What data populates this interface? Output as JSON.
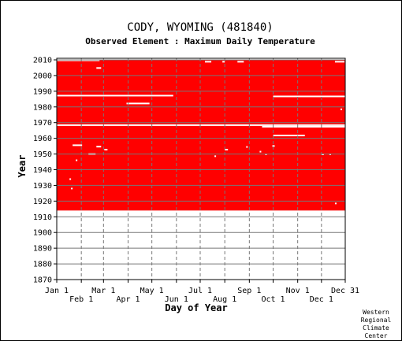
{
  "chart_data": {
    "type": "heatmap",
    "title": "CODY, WYOMING   (481840)",
    "subtitle": "Observed Element : Maximum Daily Temperature",
    "xlabel": "Day of Year",
    "ylabel": "Year",
    "ylim": [
      1870,
      2011
    ],
    "xlim": [
      1,
      365
    ],
    "grid": true,
    "y_ticks": [
      2010,
      2000,
      1990,
      1980,
      1970,
      1960,
      1950,
      1940,
      1930,
      1920,
      1910,
      1900,
      1890,
      1880,
      1870
    ],
    "x_ticks_top_row": [
      {
        "label": "Jan 1",
        "day": 1
      },
      {
        "label": "Mar 1",
        "day": 60
      },
      {
        "label": "May 1",
        "day": 121
      },
      {
        "label": "Jul 1",
        "day": 182
      },
      {
        "label": "Sep 1",
        "day": 244
      },
      {
        "label": "Nov 1",
        "day": 305
      },
      {
        "label": "Dec 31",
        "day": 365
      }
    ],
    "x_ticks_bottom_row": [
      {
        "label": "Feb 1",
        "day": 32
      },
      {
        "label": "Apr 1",
        "day": 91
      },
      {
        "label": "Jun 1",
        "day": 152
      },
      {
        "label": "Aug 1",
        "day": 213
      },
      {
        "label": "Oct 1",
        "day": 274
      },
      {
        "label": "Dec 1",
        "day": 335
      }
    ],
    "record_years": [
      1914,
      2010
    ],
    "observed_color": "#ff0000",
    "missing_color": "#ffffff",
    "missing_segments": [
      {
        "year": 2009.7,
        "start": 1,
        "end": 55
      },
      {
        "year": 2008.8,
        "start": 188,
        "end": 196
      },
      {
        "year": 2008.8,
        "start": 210,
        "end": 213
      },
      {
        "year": 2008.8,
        "start": 229,
        "end": 237
      },
      {
        "year": 2008.8,
        "start": 352,
        "end": 364
      },
      {
        "year": 2004.8,
        "start": 51,
        "end": 57
      },
      {
        "year": 1987.2,
        "start": 1,
        "end": 148
      },
      {
        "year": 1986.7,
        "start": 274,
        "end": 365
      },
      {
        "year": 1982.2,
        "start": 89,
        "end": 118
      },
      {
        "year": 1968.4,
        "start": 1,
        "end": 365
      },
      {
        "year": 1967.4,
        "start": 260,
        "end": 365
      },
      {
        "year": 1961.8,
        "start": 274,
        "end": 314
      },
      {
        "year": 1955.6,
        "start": 21,
        "end": 33
      },
      {
        "year": 1954.7,
        "start": 51,
        "end": 57
      },
      {
        "year": 1952.8,
        "start": 61,
        "end": 65
      },
      {
        "year": 1952.8,
        "start": 213,
        "end": 217
      },
      {
        "year": 1950.0,
        "start": 41,
        "end": 50
      },
      {
        "year": 1948.6,
        "start": 200,
        "end": 202
      },
      {
        "year": 1934.0,
        "start": 17,
        "end": 19
      },
      {
        "year": 1928.0,
        "start": 19,
        "end": 21
      },
      {
        "year": 1954.5,
        "start": 240,
        "end": 242
      },
      {
        "year": 1955.1,
        "start": 273,
        "end": 276
      },
      {
        "year": 1951.5,
        "start": 257,
        "end": 259
      },
      {
        "year": 1949.8,
        "start": 264,
        "end": 266
      },
      {
        "year": 1949.8,
        "start": 335,
        "end": 338
      },
      {
        "year": 1949.8,
        "start": 345,
        "end": 347
      },
      {
        "year": 1946.0,
        "start": 25,
        "end": 27
      },
      {
        "year": 1918.5,
        "start": 352,
        "end": 354
      },
      {
        "year": 1978.5,
        "start": 359,
        "end": 361
      }
    ]
  },
  "credit": [
    "Western",
    "Regional",
    "Climate",
    "Center"
  ]
}
